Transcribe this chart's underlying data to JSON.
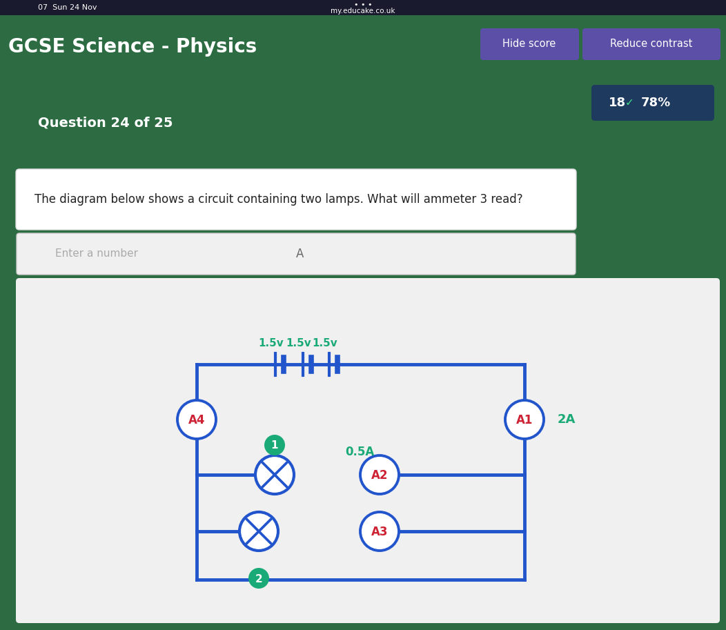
{
  "bg_green": "#2d6b42",
  "status_bar_bg": "#1a1a2e",
  "title_text": "GCSE Science - Physics",
  "title_color": "#ffffff",
  "title_fontsize": 20,
  "time_text": "07  Sun 24 Nov",
  "url_text": "my.educake.co.uk",
  "hide_score_text": "Hide score",
  "reduce_contrast_text": "Reduce contrast",
  "btn_color": "#5b4fa8",
  "score_badge_bg": "#1e3a5f",
  "score_num": "18",
  "score_check": "✓",
  "score_pct": "78%",
  "question_label": "Question 24 of 25",
  "question_text": "The diagram below shows a circuit containing two lamps. What will ammeter 3 read?",
  "input_placeholder": "Enter a number",
  "input_suffix": "A",
  "diagram_bg": "#f0f0f0",
  "circuit_color": "#2255cc",
  "circuit_lw": 3.5,
  "ammeter_text_color": "#cc2233",
  "voltage_label_color": "#1aaa77",
  "voltage_labels": [
    "1.5v",
    "1.5v",
    "1.5v"
  ],
  "current_label_color": "#1aaa77",
  "current_label": "0.5A",
  "ammeter_reading": "2A",
  "ammeter_reading_color": "#1aaa77",
  "node_color": "#1aaa77",
  "node_text_color": "#ffffff"
}
